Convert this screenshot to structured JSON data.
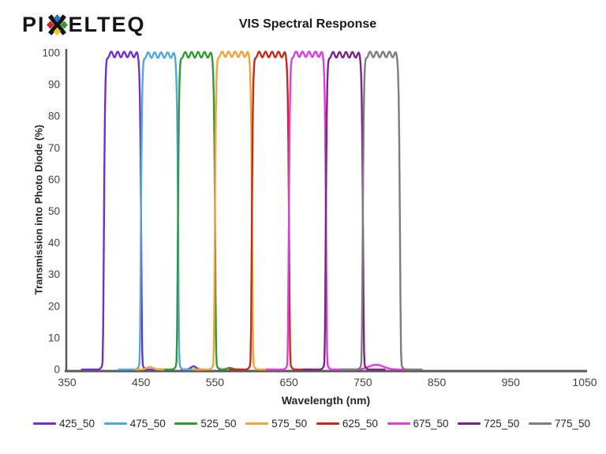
{
  "logo": {
    "text": "PIXELTEQ",
    "text_left": "PI",
    "text_right": "ELTEQ",
    "x_glyph_colors": {
      "top": "#2e6fd2",
      "left": "#d22027",
      "right": "#35982f",
      "bottom": "#f2c618",
      "cross": "#151515"
    }
  },
  "chart_data": {
    "type": "line",
    "title": "VIS Spectral Response",
    "xlabel": "Wavelength (nm)",
    "ylabel": "Transmission into Photo Diode (%)",
    "xlim": [
      350,
      1050
    ],
    "ylim": [
      0,
      100
    ],
    "x_ticks": [
      350,
      450,
      550,
      650,
      750,
      850,
      950,
      1050
    ],
    "y_ticks": [
      0,
      10,
      20,
      30,
      40,
      50,
      60,
      70,
      80,
      90,
      100
    ],
    "grid": false,
    "legend_position": "bottom",
    "shape_note": "flat-top bandpass filters: ~0% out of band, steep edges at center±25nm, flat top ~99-100% with ~1% ripple, slight foot flare near 0%",
    "axis_color": "#595959",
    "tick_label_color": "#3f3f3f",
    "series": [
      {
        "name": "425_50",
        "color": "#7330C6",
        "center_nm": 425,
        "bandwidth_nm": 50,
        "band_start_nm": 400,
        "band_end_nm": 450,
        "peak_pct": 99.5,
        "leakage": [
          {
            "nm": 521,
            "pct": 1.0,
            "width_nm": 5
          }
        ]
      },
      {
        "name": "475_50",
        "color": "#4FA8DE",
        "center_nm": 475,
        "bandwidth_nm": 50,
        "band_start_nm": 450,
        "band_end_nm": 500,
        "peak_pct": 99.3,
        "leakage": []
      },
      {
        "name": "525_50",
        "color": "#2E9B33",
        "center_nm": 525,
        "bandwidth_nm": 50,
        "band_start_nm": 500,
        "band_end_nm": 550,
        "peak_pct": 99.4,
        "leakage": [
          {
            "nm": 570,
            "pct": 0.5,
            "width_nm": 5
          }
        ]
      },
      {
        "name": "575_50",
        "color": "#F0A43C",
        "center_nm": 575,
        "bandwidth_nm": 50,
        "band_start_nm": 550,
        "band_end_nm": 600,
        "peak_pct": 99.6,
        "leakage": [
          {
            "nm": 462,
            "pct": 0.8,
            "width_nm": 6
          }
        ]
      },
      {
        "name": "625_50",
        "color": "#C52A1A",
        "center_nm": 625,
        "bandwidth_nm": 50,
        "band_start_nm": 600,
        "band_end_nm": 650,
        "peak_pct": 99.5,
        "leakage": []
      },
      {
        "name": "675_50",
        "color": "#E13BE1",
        "center_nm": 675,
        "bandwidth_nm": 50,
        "band_start_nm": 650,
        "band_end_nm": 700,
        "peak_pct": 99.6,
        "leakage": [
          {
            "nm": 768,
            "pct": 1.5,
            "width_nm": 14
          }
        ]
      },
      {
        "name": "725_50",
        "color": "#7C2486",
        "center_nm": 725,
        "bandwidth_nm": 50,
        "band_start_nm": 700,
        "band_end_nm": 750,
        "peak_pct": 99.4,
        "leakage": []
      },
      {
        "name": "775_50",
        "color": "#7D7D7D",
        "center_nm": 775,
        "bandwidth_nm": 50,
        "band_start_nm": 750,
        "band_end_nm": 800,
        "peak_pct": 99.5,
        "leakage": []
      }
    ]
  }
}
